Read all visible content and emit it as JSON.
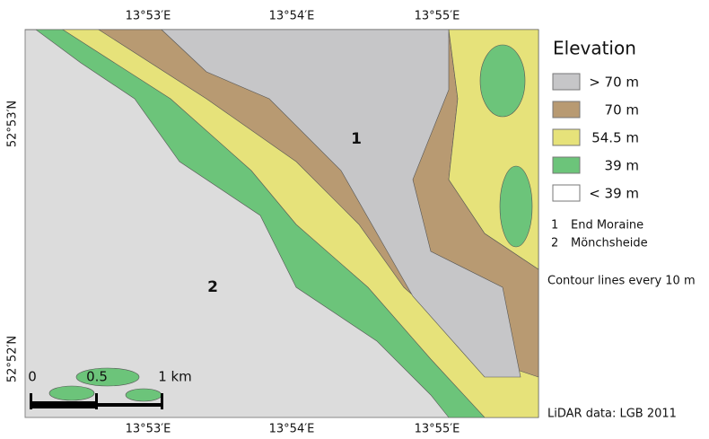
{
  "map": {
    "top_labels": [
      "13°53′E",
      "13°54′E",
      "13°55′E"
    ],
    "bottom_labels": [
      "13°53′E",
      "13°54′E",
      "13°55′E"
    ],
    "left_labels": [
      "52°53′N",
      "52°52′N"
    ],
    "markers": [
      "1",
      "2"
    ],
    "scale_bar": [
      "0",
      "0.5",
      "1 km"
    ]
  },
  "legend": {
    "title": "Elevation",
    "entries": [
      {
        "label": "> 70 m",
        "color": "#c6c6c8"
      },
      {
        "label": "70 m",
        "color": "#b89a72"
      },
      {
        "label": "54.5 m",
        "color": "#e6e27a"
      },
      {
        "label": "39 m",
        "color": "#6cc47a"
      },
      {
        "label": "< 39 m",
        "color": "#ffffff"
      }
    ]
  },
  "notes": {
    "features": [
      {
        "number": "1",
        "name": "End Moraine"
      },
      {
        "number": "2",
        "name": "Mönchsheide"
      }
    ],
    "contours": "Contour lines every 10 m",
    "source": "LiDAR data: LGB 2011"
  }
}
